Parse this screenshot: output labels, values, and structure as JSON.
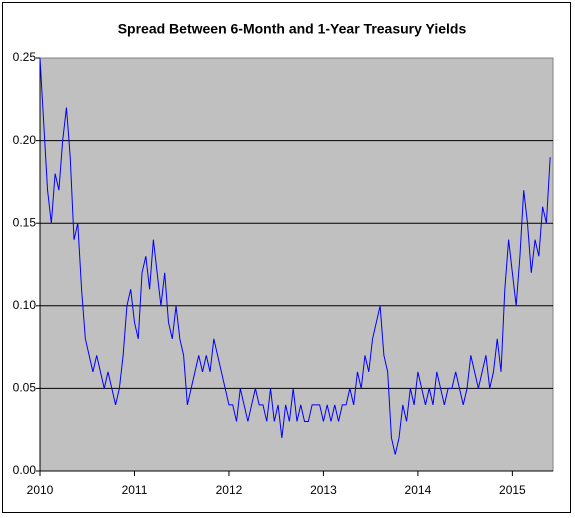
{
  "chart_data": {
    "type": "line",
    "title": "Spread Between 6-Month and 1-Year Treasury Yields",
    "x": [
      2010.0,
      2010.04,
      2010.08,
      2010.12,
      2010.16,
      2010.2,
      2010.24,
      2010.28,
      2010.32,
      2010.36,
      2010.4,
      2010.44,
      2010.48,
      2010.52,
      2010.56,
      2010.6,
      2010.64,
      2010.68,
      2010.72,
      2010.76,
      2010.8,
      2010.84,
      2010.88,
      2010.92,
      2010.96,
      2011.0,
      2011.04,
      2011.08,
      2011.12,
      2011.16,
      2011.2,
      2011.24,
      2011.28,
      2011.32,
      2011.36,
      2011.4,
      2011.44,
      2011.48,
      2011.52,
      2011.56,
      2011.6,
      2011.64,
      2011.68,
      2011.72,
      2011.76,
      2011.8,
      2011.84,
      2011.88,
      2011.92,
      2011.96,
      2012.0,
      2012.04,
      2012.08,
      2012.12,
      2012.16,
      2012.2,
      2012.24,
      2012.28,
      2012.32,
      2012.36,
      2012.4,
      2012.44,
      2012.48,
      2012.52,
      2012.56,
      2012.6,
      2012.64,
      2012.68,
      2012.72,
      2012.76,
      2012.8,
      2012.84,
      2012.88,
      2012.92,
      2012.96,
      2013.0,
      2013.04,
      2013.08,
      2013.12,
      2013.16,
      2013.2,
      2013.24,
      2013.28,
      2013.32,
      2013.36,
      2013.4,
      2013.44,
      2013.48,
      2013.52,
      2013.56,
      2013.6,
      2013.64,
      2013.68,
      2013.72,
      2013.76,
      2013.8,
      2013.84,
      2013.88,
      2013.92,
      2013.96,
      2014.0,
      2014.04,
      2014.08,
      2014.12,
      2014.16,
      2014.2,
      2014.24,
      2014.28,
      2014.32,
      2014.36,
      2014.4,
      2014.44,
      2014.48,
      2014.52,
      2014.56,
      2014.6,
      2014.64,
      2014.68,
      2014.72,
      2014.76,
      2014.8,
      2014.84,
      2014.88,
      2014.92,
      2014.96,
      2015.0,
      2015.04,
      2015.08,
      2015.12,
      2015.16,
      2015.2,
      2015.24,
      2015.28,
      2015.32,
      2015.36,
      2015.4
    ],
    "series": [
      {
        "name": "Spread",
        "color": "#0000ff",
        "values": [
          0.25,
          0.21,
          0.17,
          0.15,
          0.18,
          0.17,
          0.2,
          0.22,
          0.19,
          0.14,
          0.15,
          0.11,
          0.08,
          0.07,
          0.06,
          0.07,
          0.06,
          0.05,
          0.06,
          0.05,
          0.04,
          0.05,
          0.07,
          0.1,
          0.11,
          0.09,
          0.08,
          0.12,
          0.13,
          0.11,
          0.14,
          0.12,
          0.1,
          0.12,
          0.09,
          0.08,
          0.1,
          0.08,
          0.07,
          0.04,
          0.05,
          0.06,
          0.07,
          0.06,
          0.07,
          0.06,
          0.08,
          0.07,
          0.06,
          0.05,
          0.04,
          0.04,
          0.03,
          0.05,
          0.04,
          0.03,
          0.04,
          0.05,
          0.04,
          0.04,
          0.03,
          0.05,
          0.03,
          0.04,
          0.02,
          0.04,
          0.03,
          0.05,
          0.03,
          0.04,
          0.03,
          0.03,
          0.04,
          0.04,
          0.04,
          0.03,
          0.04,
          0.03,
          0.04,
          0.03,
          0.04,
          0.04,
          0.05,
          0.04,
          0.06,
          0.05,
          0.07,
          0.06,
          0.08,
          0.09,
          0.1,
          0.07,
          0.06,
          0.02,
          0.01,
          0.02,
          0.04,
          0.03,
          0.05,
          0.04,
          0.06,
          0.05,
          0.04,
          0.05,
          0.04,
          0.06,
          0.05,
          0.04,
          0.05,
          0.05,
          0.06,
          0.05,
          0.04,
          0.05,
          0.07,
          0.06,
          0.05,
          0.06,
          0.07,
          0.05,
          0.06,
          0.08,
          0.06,
          0.11,
          0.14,
          0.12,
          0.1,
          0.13,
          0.17,
          0.15,
          0.12,
          0.14,
          0.13,
          0.16,
          0.15,
          0.19
        ]
      }
    ],
    "xlim": [
      2010,
      2015.43
    ],
    "xticks": [
      2010,
      2011,
      2012,
      2013,
      2014,
      2015
    ],
    "ylim": [
      0,
      0.25
    ],
    "yticks": [
      {
        "value": 0,
        "label": "0.00"
      },
      0.05,
      {
        "value": 0.1,
        "label": "0.10"
      },
      0.15,
      {
        "value": 0.2,
        "label": "0.20"
      },
      0.25
    ],
    "grid": true,
    "background": "#c0c0c0"
  }
}
